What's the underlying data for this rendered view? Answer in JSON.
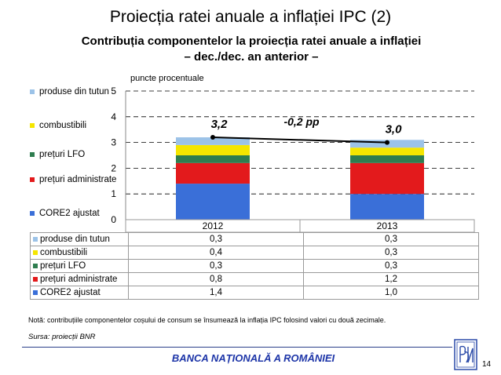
{
  "slide": {
    "title": "Proiecția ratei anuale a inflației IPC (2)",
    "chart_title_line1": "Contribuția componentelor la proiecția ratei anuale a inflației",
    "chart_title_line2": "– dec./dec. an anterior –",
    "note": "Notă: contribuțiile componentelor coșului de consum se însumează la inflația IPC folosind valori cu două zecimale.",
    "source": "Sursa: proiecții BNR",
    "footer": "BANCA NAȚIONALĂ A ROMÂNIEI",
    "page_number": "14",
    "logo_icon": "bnr-logo-icon"
  },
  "chart_data": {
    "type": "bar",
    "stacked": true,
    "ylabel": "puncte procentuale",
    "ylim": [
      0,
      5
    ],
    "yticks": [
      0,
      1,
      2,
      3,
      4,
      5
    ],
    "categories": [
      "2012",
      "2013"
    ],
    "grid": "dashed horizontal",
    "legend_position": "left",
    "series": [
      {
        "name": "CORE2 ajustat",
        "values": [
          1.4,
          1.0
        ],
        "color": "#3a6fd8"
      },
      {
        "name": "prețuri administrate",
        "values": [
          0.8,
          1.2
        ],
        "color": "#e31a1c"
      },
      {
        "name": "prețuri LFO",
        "values": [
          0.3,
          0.3
        ],
        "color": "#2e7d4f"
      },
      {
        "name": "combustibili",
        "values": [
          0.4,
          0.3
        ],
        "color": "#f5e600"
      },
      {
        "name": "produse din tutun",
        "values": [
          0.3,
          0.3
        ],
        "color": "#9cc3e8"
      }
    ],
    "totals": {
      "values": [
        3.2,
        3.0
      ],
      "labels": [
        "3,2",
        "3,0"
      ]
    },
    "annotation": "-0,2 pp",
    "table_values": [
      [
        "0,3",
        "0,3"
      ],
      [
        "0,4",
        "0,3"
      ],
      [
        "0,3",
        "0,3"
      ],
      [
        "0,8",
        "1,2"
      ],
      [
        "1,4",
        "1,0"
      ]
    ]
  }
}
